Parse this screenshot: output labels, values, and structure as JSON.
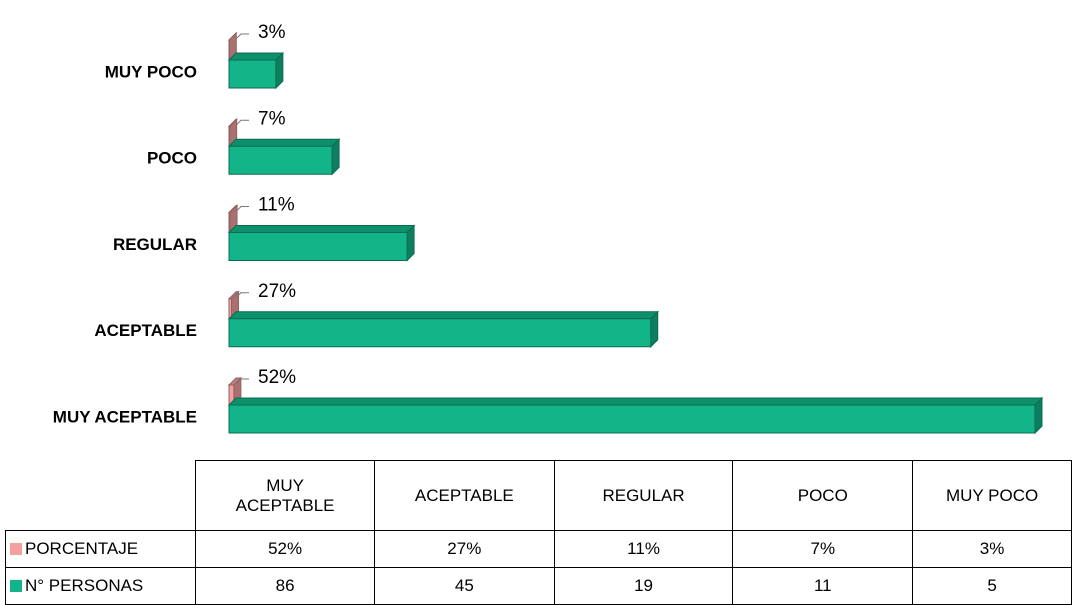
{
  "chart_data": {
    "type": "bar",
    "orientation": "horizontal",
    "categories": [
      "MUY ACEPTABLE",
      "ACEPTABLE",
      "REGULAR",
      "POCO",
      "MUY POCO"
    ],
    "series": [
      {
        "name": "PORCENTAJE",
        "color": "#f4a0a0",
        "values": [
          52,
          27,
          11,
          7,
          3
        ],
        "value_labels": [
          "52%",
          "27%",
          "11%",
          "7%",
          "3%"
        ]
      },
      {
        "name": "N° PERSONAS",
        "color": "#13b488",
        "values": [
          86,
          45,
          19,
          11,
          5
        ]
      }
    ]
  }
}
